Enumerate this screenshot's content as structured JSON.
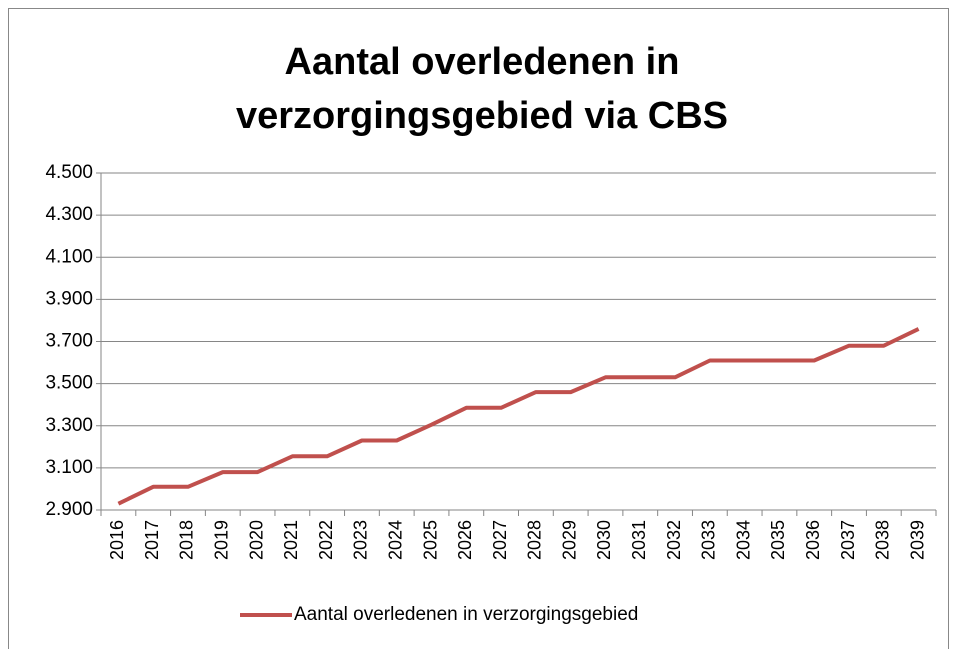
{
  "chart_data": {
    "type": "line",
    "title": [
      "Aantal overledenen in",
      "verzorgingsgebied via CBS"
    ],
    "categories": [
      "2016",
      "2017",
      "2018",
      "2019",
      "2020",
      "2021",
      "2022",
      "2023",
      "2024",
      "2025",
      "2026",
      "2027",
      "2028",
      "2029",
      "2030",
      "2031",
      "2032",
      "2033",
      "2034",
      "2035",
      "2036",
      "2037",
      "2038",
      "2039"
    ],
    "series": [
      {
        "name": "Aantal overledenen in verzorgingsgebied",
        "color": "#c0504d",
        "values": [
          2930,
          3010,
          3010,
          3080,
          3080,
          3155,
          3155,
          3230,
          3230,
          3305,
          3385,
          3385,
          3460,
          3460,
          3530,
          3530,
          3530,
          3610,
          3610,
          3610,
          3610,
          3680,
          3680,
          3760
        ]
      }
    ],
    "ylim": [
      2900,
      4500
    ],
    "yticks": [
      {
        "value": 2900,
        "label": "2.900"
      },
      {
        "value": 3100,
        "label": "3.100"
      },
      {
        "value": 3300,
        "label": "3.300"
      },
      {
        "value": 3500,
        "label": "3.500"
      },
      {
        "value": 3700,
        "label": "3.700"
      },
      {
        "value": 3900,
        "label": "3.900"
      },
      {
        "value": 4100,
        "label": "4.100"
      },
      {
        "value": 4300,
        "label": "4.300"
      },
      {
        "value": 4500,
        "label": "4.500"
      }
    ],
    "grid": true,
    "legend": "bottom"
  }
}
